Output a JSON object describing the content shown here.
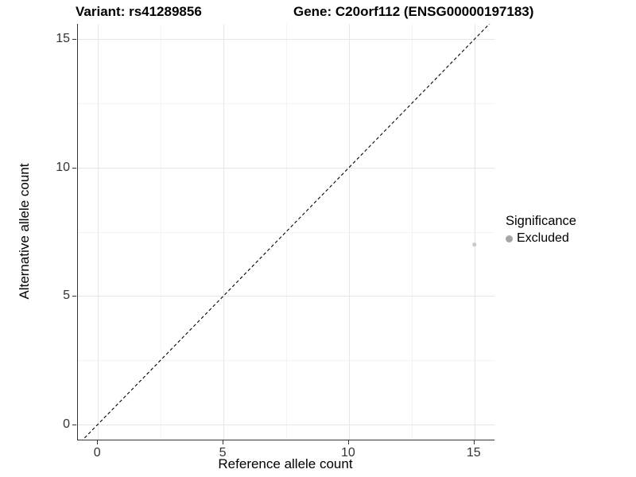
{
  "chart_data": {
    "type": "scatter",
    "title_left": "Variant: rs41289856",
    "title_right": "Gene: C20orf112 (ENSG00000197183)",
    "xlabel": "Reference allele count",
    "ylabel": "Alternative allele count",
    "xlim": [
      -0.8,
      15.8
    ],
    "ylim": [
      -0.6,
      15.6
    ],
    "x_major_ticks": [
      0,
      5,
      10,
      15
    ],
    "y_major_ticks": [
      0,
      5,
      10,
      15
    ],
    "x_minor_ticks": [
      2.5,
      7.5,
      12.5
    ],
    "y_minor_ticks": [
      2.5,
      7.5,
      12.5
    ],
    "grid": "major and minor gridlines on white panel",
    "series": [
      {
        "name": "Excluded",
        "color": "#cbcbcb",
        "point_radius": 2.6,
        "points": [
          {
            "x": 15,
            "y": 7
          }
        ]
      }
    ],
    "reference_line": {
      "kind": "identity y = x",
      "style": "dashed",
      "color": "#000000"
    },
    "legend": {
      "title": "Significance",
      "position": "right",
      "entries": [
        {
          "label": "Excluded",
          "swatch_color": "#a6a6a6"
        }
      ]
    }
  },
  "colors": {
    "background": "#ffffff",
    "axis_line": "#333333",
    "tick_label": "#333333",
    "grid_major": "#e7e7e7",
    "grid_minor": "#f4f4f4"
  }
}
